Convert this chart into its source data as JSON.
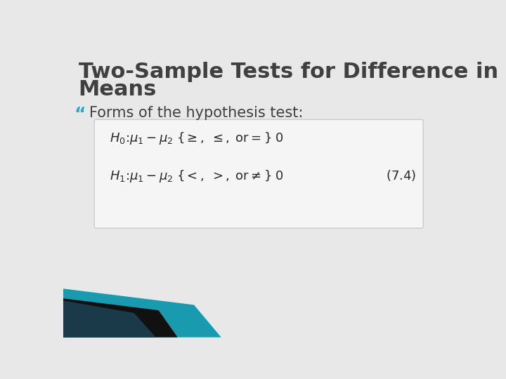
{
  "title_line1": "Two-Sample Tests for Difference in",
  "title_line2": "Means",
  "title_color": "#404040",
  "title_fontsize": 22,
  "title_fontweight": "bold",
  "bullet_text": "Forms of the hypothesis test:",
  "bullet_color": "#404040",
  "bullet_fontsize": 15,
  "bullet_marker": "“",
  "bullet_marker_color": "#29a8d4",
  "h0_line": "$H_0\\colon \\mu_1 - \\mu_2 \\;\\{\\geq,\\; \\leq,\\; \\mathrm{or} =\\}\\; 0$",
  "h1_line": "$H_1\\colon \\mu_1 - \\mu_2 \\;\\{<,\\; >,\\; \\mathrm{or} \\neq\\}\\; 0$",
  "eq_number": "$(7.4)$",
  "formula_fontsize": 13,
  "box_facecolor": "#f5f5f5",
  "box_edgecolor": "#cccccc",
  "bg_color": "#e8e8e8",
  "teal_color": "#1a9aaf",
  "dark_color": "#1a3a4a"
}
